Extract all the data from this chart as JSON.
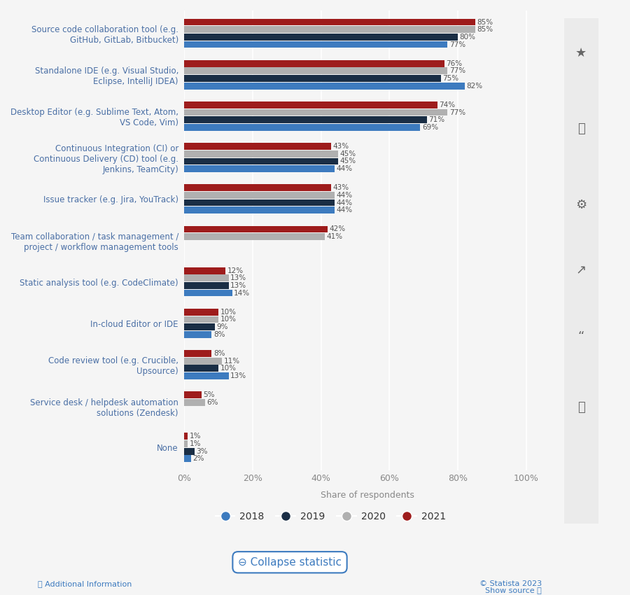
{
  "categories": [
    "Source code collaboration tool (e.g.\nGitHub, GitLab, Bitbucket)",
    "Standalone IDE (e.g. Visual Studio,\nEclipse, IntelliJ IDEA)",
    "Desktop Editor (e.g. Sublime Text, Atom,\nVS Code, Vim)",
    "Continuous Integration (CI) or\nContinuous Delivery (CD) tool (e.g.\nJenkins, TeamCity)",
    "Issue tracker (e.g. Jira, YouTrack)",
    "Team collaboration / task management /\nproject / workflow management tools",
    "Static analysis tool (e.g. CodeClimate)",
    "In-cloud Editor or IDE",
    "Code review tool (e.g. Crucible,\nUpsource)",
    "Service desk / helpdesk automation\nsolutions (Zendesk)",
    "None"
  ],
  "data": {
    "2021": [
      85,
      76,
      74,
      43,
      43,
      42,
      12,
      10,
      8,
      5,
      1
    ],
    "2020": [
      85,
      77,
      77,
      45,
      44,
      41,
      13,
      10,
      11,
      6,
      1
    ],
    "2019": [
      80,
      75,
      71,
      45,
      44,
      null,
      13,
      9,
      10,
      null,
      3
    ],
    "2018": [
      77,
      82,
      69,
      44,
      44,
      null,
      14,
      8,
      13,
      null,
      2
    ]
  },
  "colors": {
    "2021": "#9e1c1c",
    "2020": "#b0b0b0",
    "2019": "#1a2e45",
    "2018": "#3d7bbf"
  },
  "years": [
    "2021",
    "2020",
    "2019",
    "2018"
  ],
  "xlabel": "Share of respondents",
  "xticks": [
    0,
    20,
    40,
    60,
    80,
    100
  ],
  "xtick_labels": [
    "0%",
    "20%",
    "40%",
    "60%",
    "80%",
    "100%"
  ],
  "background_color": "#f5f5f5",
  "bar_height": 0.18,
  "axis_label_color": "#4a6fa5",
  "collapse_button_text": "⊖ Collapse statistic",
  "footer_left": "ⓘ Additional Information",
  "footer_right_top": "© Statista 2023",
  "footer_right_bottom": "Show source ⓘ"
}
